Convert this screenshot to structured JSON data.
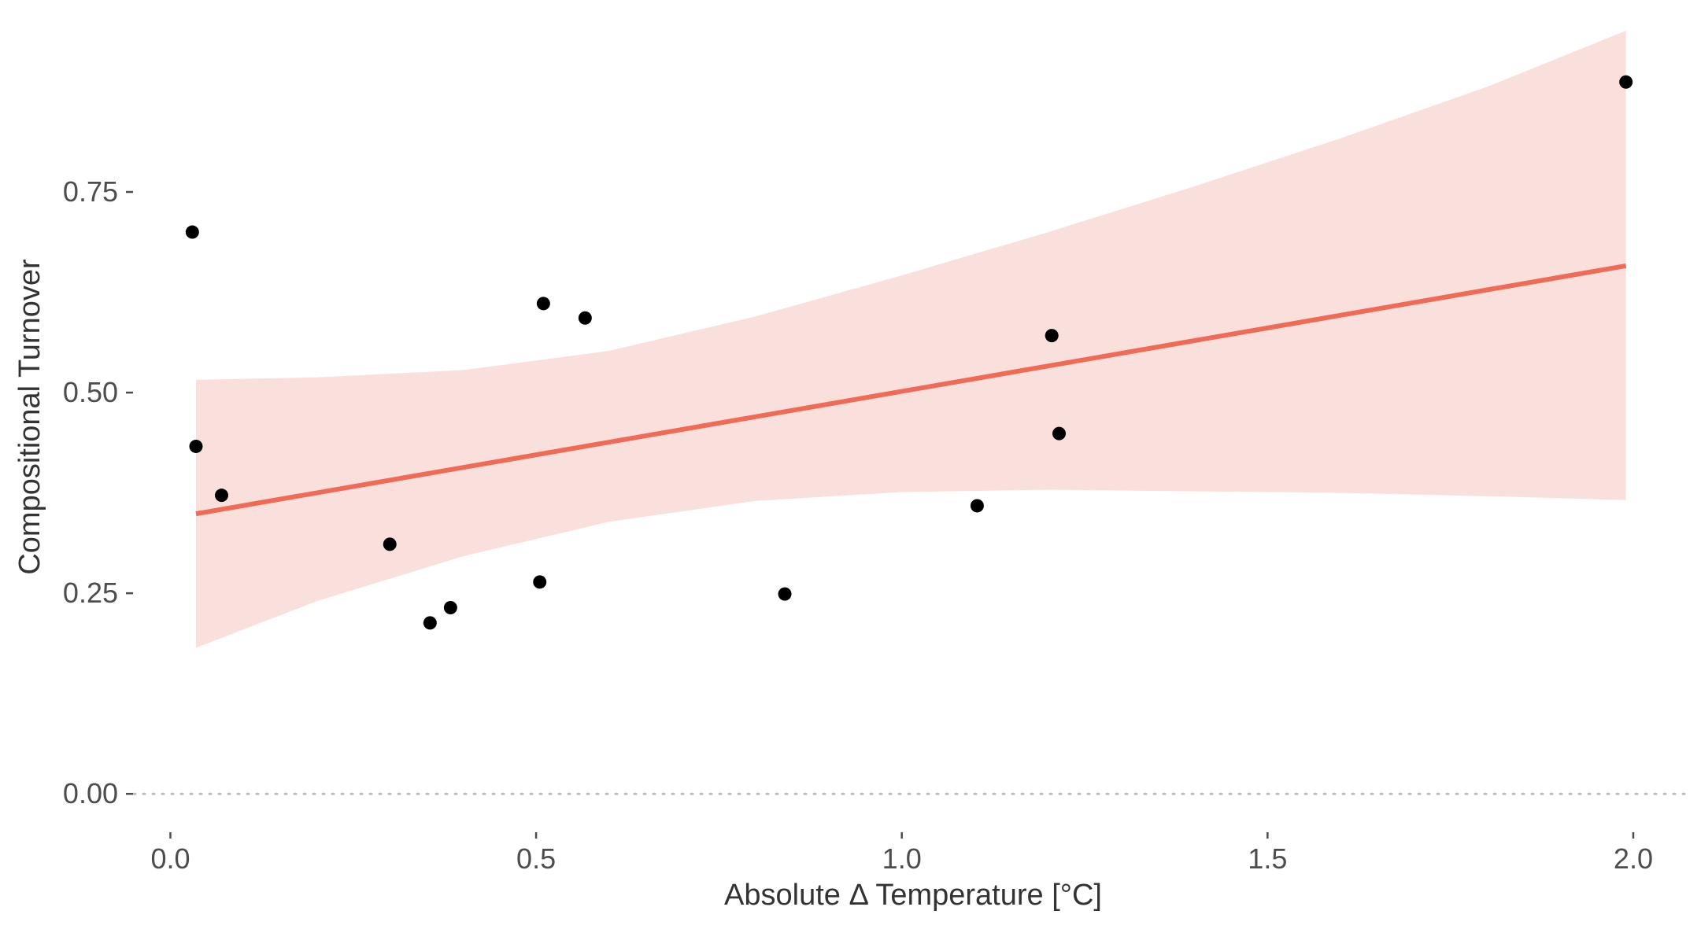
{
  "chart_data": {
    "type": "scatter",
    "title": "",
    "xlabel": "Absolute Δ Temperature [°C]",
    "ylabel": "Compositional Turnover",
    "xlim": [
      -0.05,
      2.07
    ],
    "ylim": [
      -0.04,
      0.95
    ],
    "x_ticks": [
      0.0,
      0.5,
      1.0,
      1.5,
      2.0
    ],
    "x_tick_labels": [
      "0.0",
      "0.5",
      "1.0",
      "1.5",
      "2.0"
    ],
    "y_ticks": [
      0.0,
      0.25,
      0.5,
      0.75
    ],
    "y_tick_labels": [
      "0.00",
      "0.25",
      "0.50",
      "0.75"
    ],
    "grid": false,
    "reference_line": {
      "y": 0.0,
      "style": "dotted",
      "color": "#bdbdbd"
    },
    "points": [
      {
        "x": 0.03,
        "y": 0.7
      },
      {
        "x": 0.035,
        "y": 0.433
      },
      {
        "x": 0.07,
        "y": 0.372
      },
      {
        "x": 0.3,
        "y": 0.311
      },
      {
        "x": 0.355,
        "y": 0.213
      },
      {
        "x": 0.383,
        "y": 0.232
      },
      {
        "x": 0.505,
        "y": 0.264
      },
      {
        "x": 0.51,
        "y": 0.611
      },
      {
        "x": 0.567,
        "y": 0.593
      },
      {
        "x": 0.84,
        "y": 0.249
      },
      {
        "x": 1.103,
        "y": 0.359
      },
      {
        "x": 1.205,
        "y": 0.571
      },
      {
        "x": 1.215,
        "y": 0.449
      },
      {
        "x": 1.99,
        "y": 0.887
      }
    ],
    "fit_line": {
      "x": [
        0.035,
        1.99
      ],
      "y": [
        0.349,
        0.658
      ],
      "color": "#ef6b55"
    },
    "confidence_band": {
      "color": "#fae0dc",
      "x": [
        0.035,
        0.2,
        0.4,
        0.6,
        0.8,
        1.0,
        1.2,
        1.4,
        1.6,
        1.8,
        1.99
      ],
      "upper": [
        0.516,
        0.519,
        0.528,
        0.552,
        0.595,
        0.646,
        0.7,
        0.757,
        0.817,
        0.881,
        0.951
      ],
      "lower": [
        0.182,
        0.24,
        0.296,
        0.339,
        0.365,
        0.376,
        0.379,
        0.377,
        0.375,
        0.371,
        0.366
      ]
    },
    "point_color": "#000000"
  }
}
